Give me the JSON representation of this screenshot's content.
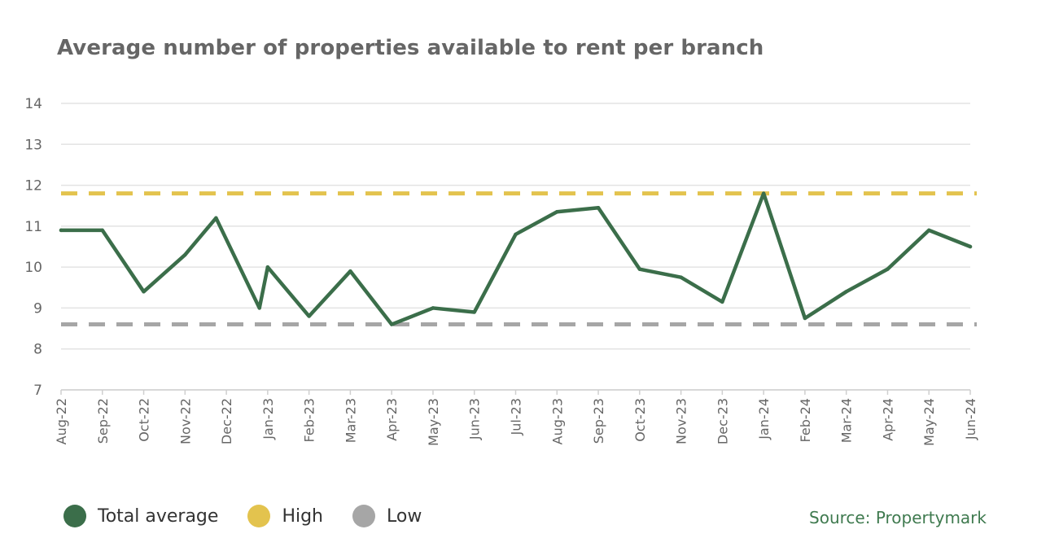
{
  "chart_data": {
    "type": "line",
    "title": "Average number of properties available to rent per branch",
    "xlabel": "",
    "ylabel": "",
    "ylim": [
      7,
      14
    ],
    "yticks": [
      7,
      8,
      9,
      10,
      11,
      12,
      13,
      14
    ],
    "grid": true,
    "categories": [
      "Aug-22",
      "Sep-22",
      "Oct-22",
      "Nov-22",
      "Dec-22",
      "Jan-23",
      "Feb-23",
      "Mar-23",
      "Apr-23",
      "May-23",
      "Jun-23",
      "Jul-23",
      "Aug-23",
      "Sep-23",
      "Oct-23",
      "Nov-23",
      "Dec-23",
      "Jan-24",
      "Feb-24",
      "Mar-24",
      "Apr-24",
      "May-24",
      "Jun-24"
    ],
    "series": [
      {
        "name": "Total average",
        "color": "#3b6e4a",
        "points": [
          {
            "x": 0,
            "y": 10.9
          },
          {
            "x": 1,
            "y": 10.9
          },
          {
            "x": 2,
            "y": 9.4
          },
          {
            "x": 3,
            "y": 10.3
          },
          {
            "x": 3.75,
            "y": 11.2
          },
          {
            "x": 4.8,
            "y": 9.0
          },
          {
            "x": 5,
            "y": 10.0
          },
          {
            "x": 6,
            "y": 8.8
          },
          {
            "x": 7,
            "y": 9.9
          },
          {
            "x": 8,
            "y": 8.6
          },
          {
            "x": 9,
            "y": 9.0
          },
          {
            "x": 10,
            "y": 8.9
          },
          {
            "x": 11,
            "y": 10.8
          },
          {
            "x": 12,
            "y": 11.35
          },
          {
            "x": 13,
            "y": 11.45
          },
          {
            "x": 14,
            "y": 9.95
          },
          {
            "x": 15,
            "y": 9.75
          },
          {
            "x": 16,
            "y": 9.15
          },
          {
            "x": 17,
            "y": 11.8
          },
          {
            "x": 18,
            "y": 8.75
          },
          {
            "x": 19,
            "y": 9.4
          },
          {
            "x": 20,
            "y": 9.95
          },
          {
            "x": 21,
            "y": 10.9
          },
          {
            "x": 22,
            "y": 10.5
          }
        ]
      },
      {
        "name": "High",
        "color": "#e3c34e",
        "constant": 11.8,
        "dashed": true
      },
      {
        "name": "Low",
        "color": "#a6a6a6",
        "constant": 8.6,
        "dashed": true
      }
    ],
    "legend_position": "bottom-left"
  },
  "legend": {
    "items": [
      {
        "label": "Total average",
        "color": "#3b6e4a"
      },
      {
        "label": "High",
        "color": "#e3c34e"
      },
      {
        "label": "Low",
        "color": "#a6a6a6"
      }
    ]
  },
  "source": "Source: Propertymark"
}
